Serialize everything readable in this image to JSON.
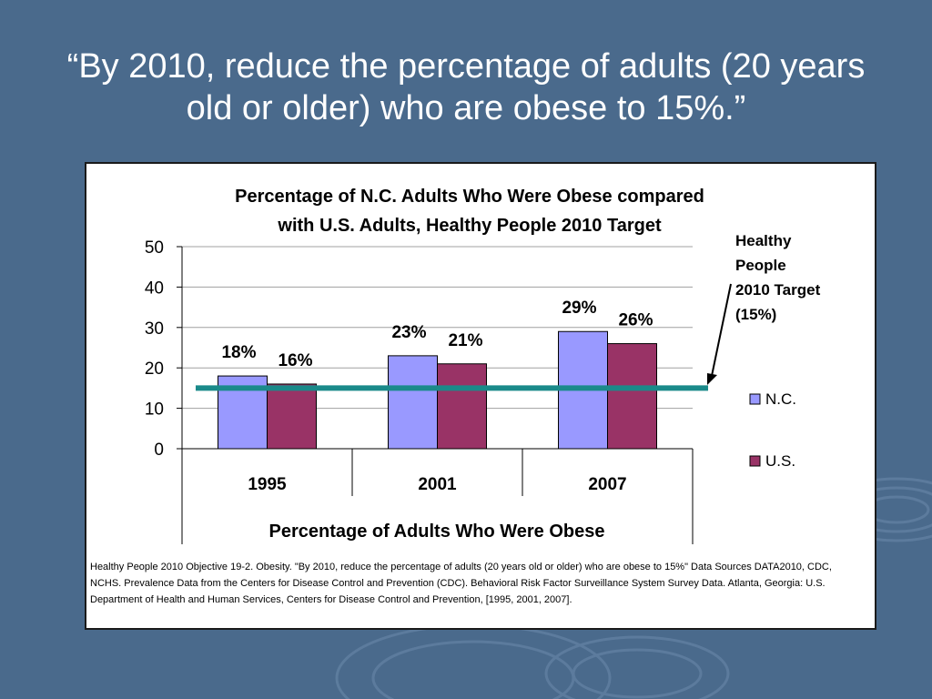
{
  "slide": {
    "title": "“By 2010, reduce the percentage of adults (20 years old or older) who are obese to 15%.”"
  },
  "chart_data": {
    "type": "bar",
    "title_line1": "Percentage of N.C. Adults Who Were Obese compared",
    "title_line2": "with U.S. Adults, Healthy People 2010 Target",
    "categories": [
      "1995",
      "2001",
      "2007"
    ],
    "series": [
      {
        "name": "N.C.",
        "values": [
          18,
          23,
          29
        ],
        "labels": [
          "18%",
          "23%",
          "29%"
        ],
        "color": "#9999ff"
      },
      {
        "name": "U.S.",
        "values": [
          16,
          21,
          26
        ],
        "labels": [
          "16%",
          "21%",
          "26%"
        ],
        "color": "#993366"
      }
    ],
    "ylim": [
      0,
      50
    ],
    "yticks": [
      "0",
      "10",
      "20",
      "30",
      "40",
      "50"
    ],
    "xlabel": "Percentage of Adults Who Were Obese",
    "ylabel": "",
    "grid": true,
    "legend_position": "right",
    "target": {
      "value": 15,
      "color": "#1a8a8a",
      "label_lines": [
        "Healthy",
        "People",
        "2010 Target",
        "(15%)"
      ]
    }
  },
  "source": {
    "note": "Healthy People 2010 Objective 19-2. Obesity. \"By 2010, reduce the percentage of adults (20 years old or older) who are obese to 15%\" Data Sources DATA2010, CDC, NCHS. Prevalence Data from the Centers for Disease Control and Prevention (CDC). Behavioral Risk Factor Surveillance System Survey Data. Atlanta, Georgia: U.S. Department of Health and Human Services, Centers for Disease Control and Prevention, [1995, 2001, 2007]."
  }
}
